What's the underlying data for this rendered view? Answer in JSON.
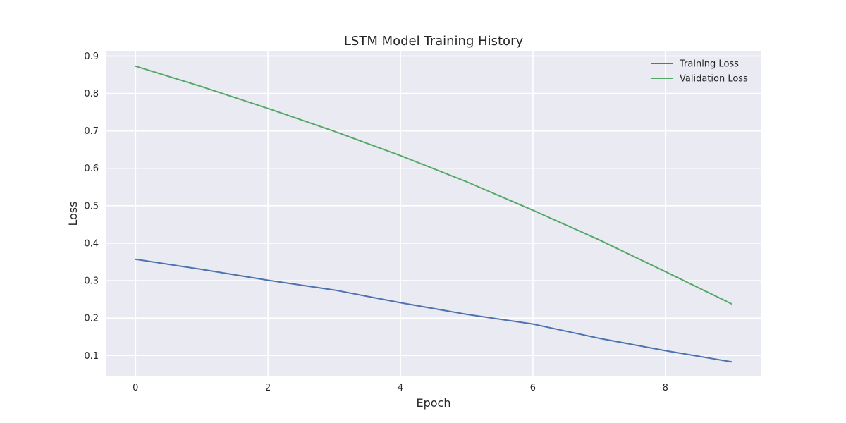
{
  "chart_data": {
    "type": "line",
    "title": "LSTM Model Training History",
    "xlabel": "Epoch",
    "ylabel": "Loss",
    "xlim": [
      -0.45,
      9.45
    ],
    "ylim": [
      0.044,
      0.914
    ],
    "xticks": [
      0,
      2,
      4,
      6,
      8
    ],
    "yticks": [
      0.1,
      0.2,
      0.3,
      0.4,
      0.5,
      0.6,
      0.7,
      0.8,
      0.9
    ],
    "grid": true,
    "legend_position": "top-right",
    "x": [
      0,
      1,
      2,
      3,
      4,
      5,
      6,
      7,
      8,
      9
    ],
    "series": [
      {
        "name": "Training Loss",
        "color": "#4c72b0",
        "values": [
          0.357,
          0.33,
          0.301,
          0.275,
          0.241,
          0.21,
          0.184,
          0.146,
          0.113,
          0.083
        ]
      },
      {
        "name": "Validation Loss",
        "color": "#55a868",
        "values": [
          0.873,
          0.818,
          0.76,
          0.699,
          0.634,
          0.564,
          0.488,
          0.409,
          0.324,
          0.238
        ]
      }
    ]
  }
}
